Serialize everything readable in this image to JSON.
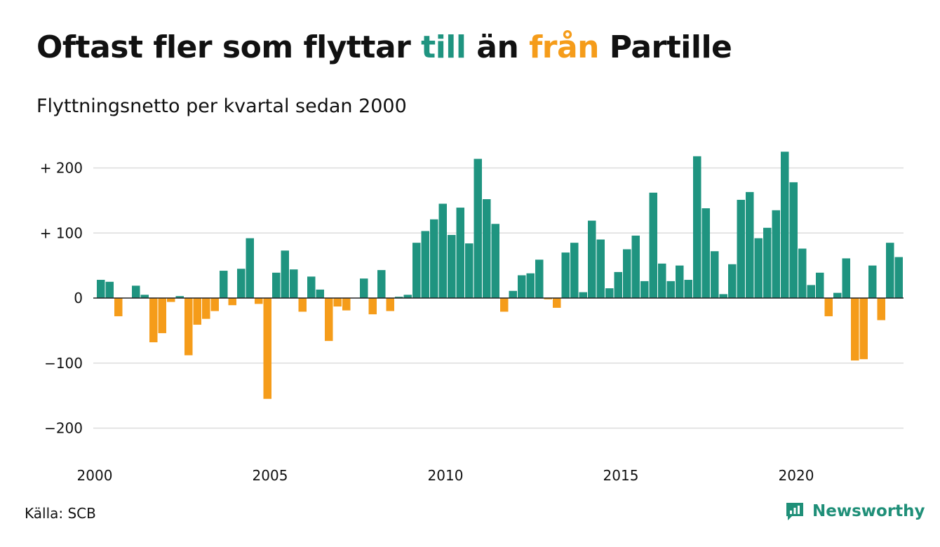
{
  "header": {
    "title_parts": [
      "Oftast fler som flyttar ",
      "till",
      " än ",
      "från",
      " Partille"
    ],
    "subtitle": "Flyttningsnetto per kvartal sedan 2000"
  },
  "footer": {
    "source": "Källa: SCB",
    "brand": "Newsworthy",
    "brand_icon": "newsworthy-logo-icon"
  },
  "colors": {
    "positive": "#1f9480",
    "negative": "#f59c1a",
    "grid": "#dddddd",
    "brand": "#1f8f78"
  },
  "chart_data": {
    "type": "bar",
    "title": "Oftast fler som flyttar till än från Partille",
    "subtitle": "Flyttningsnetto per kvartal sedan 2000",
    "x_start": "2000 Q1",
    "ylim": [
      -230,
      240
    ],
    "yticks": [
      200,
      100,
      0,
      -100,
      -200
    ],
    "ytick_labels": [
      "+ 200",
      "+ 100",
      "0",
      "−100",
      "−200"
    ],
    "xticks": [
      "2000",
      "2005",
      "2010",
      "2015",
      "2020"
    ],
    "grid": true,
    "values": [
      28,
      25,
      -28,
      0,
      19,
      5,
      -68,
      -54,
      -6,
      3,
      -88,
      -41,
      -32,
      -20,
      42,
      -11,
      45,
      92,
      -9,
      -155,
      39,
      73,
      44,
      -21,
      33,
      13,
      -66,
      -13,
      -19,
      0,
      30,
      -25,
      43,
      -20,
      2,
      5,
      85,
      103,
      121,
      145,
      97,
      139,
      84,
      214,
      152,
      114,
      -21,
      11,
      35,
      38,
      59,
      -2,
      -15,
      70,
      85,
      9,
      119,
      90,
      15,
      40,
      75,
      96,
      26,
      162,
      53,
      26,
      50,
      28,
      218,
      138,
      72,
      6,
      52,
      151,
      163,
      92,
      108,
      135,
      225,
      178,
      76,
      20,
      39,
      -28,
      8,
      61,
      -96,
      -94,
      50,
      -34,
      85,
      63
    ]
  }
}
